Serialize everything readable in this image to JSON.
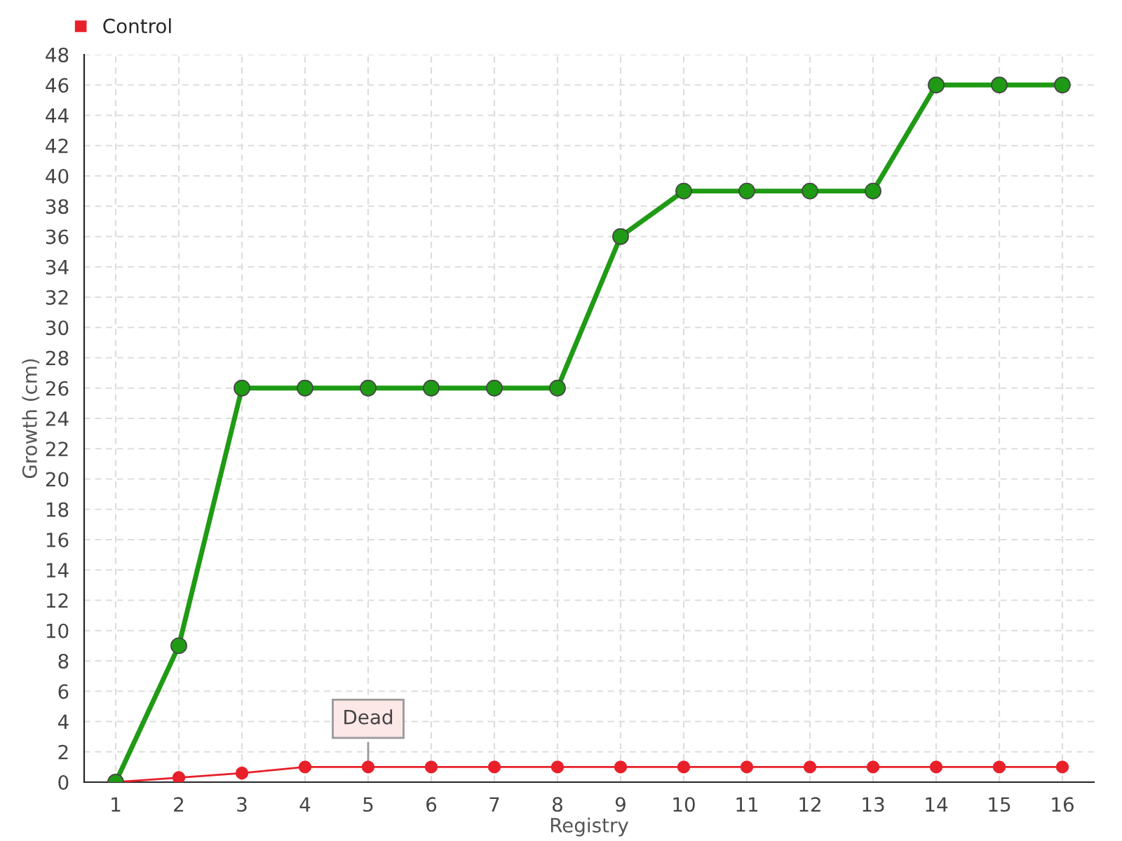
{
  "chart_data": {
    "type": "line",
    "xlabel": "Registry",
    "ylabel": "Growth (cm)",
    "categories": [
      "1",
      "2",
      "3",
      "4",
      "5",
      "6",
      "7",
      "8",
      "9",
      "10",
      "11",
      "12",
      "13",
      "14",
      "15",
      "16"
    ],
    "series": [
      {
        "color": "#1f9a14",
        "values": [
          0,
          9,
          26,
          26,
          26,
          26,
          26,
          26,
          36,
          39,
          39,
          39,
          39,
          46,
          46,
          46
        ]
      },
      {
        "name": "Control",
        "color": "#e8202a",
        "values": [
          0,
          0.3,
          0.6,
          1,
          1,
          1,
          1,
          1,
          1,
          1,
          1,
          1,
          1,
          1,
          1,
          1
        ]
      }
    ],
    "ylim": [
      0,
      48
    ],
    "yticks": [
      0,
      2,
      4,
      6,
      8,
      10,
      12,
      14,
      16,
      18,
      20,
      22,
      24,
      26,
      28,
      30,
      32,
      34,
      36,
      38,
      40,
      42,
      44,
      46,
      48
    ],
    "grid": true,
    "legend": "top left",
    "marker": "circle",
    "line_style": "solid",
    "annotations": [
      {
        "text": "Dead",
        "x": "5",
        "y": 1
      }
    ]
  }
}
